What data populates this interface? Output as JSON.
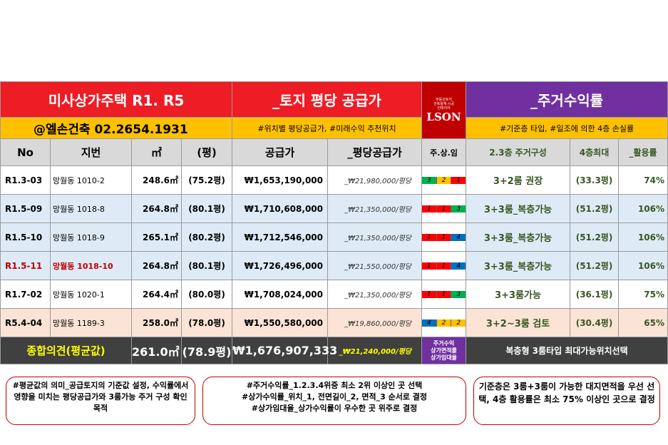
{
  "header": {
    "title_left": "미사상가주택 R1. R5",
    "title_mid": "_토지 평당 공급가",
    "title_right": "_주거수익률",
    "logo_lines": [
      "부동산토지",
      "건축설계·시공",
      "인테리어"
    ],
    "logo_text": "LSON",
    "company": "@엘손건축 02.2654.1931",
    "sub_mid": "#위치별 평당공급가, #미래수익 추천위치",
    "sub_right": "#기준층 타입, #일조에 의한 4층 손실률"
  },
  "columns": {
    "no": "No",
    "lot": "지번",
    "area": "㎡",
    "pyeong": "(평)",
    "price": "공급가",
    "unit_price": "_평당공급가",
    "score": "주.상.임",
    "plan": "2.3층 주거구성",
    "max": "4층최대",
    "rate": "_활용률"
  },
  "rows": [
    {
      "no": "R1.3-03",
      "lot": "망월동 1010-2",
      "area": "248.6㎡",
      "pyeong": "(75.2평)",
      "price": "₩1,653,190,000",
      "unit_price": "_₩21,980,000/평당",
      "scores": [
        "3",
        "2",
        "1"
      ],
      "score_colors": [
        "#00b050",
        "#ffc000",
        "#ff0000"
      ],
      "plan": "3+2룸 권장",
      "max": "(33.3평)",
      "rate": "74%",
      "bg": "white",
      "highlight": false
    },
    {
      "no": "R1.5-09",
      "lot": "망월동 1018-8",
      "area": "264.8㎡",
      "pyeong": "(80.1평)",
      "price": "₩1,710,608,000",
      "unit_price": "_₩21,350,000/평당",
      "scores": [
        "1",
        "1",
        "3"
      ],
      "score_colors": [
        "#ff0000",
        "#ff0000",
        "#00b050"
      ],
      "plan": "3+3룸_복층가능",
      "max": "(51.2평)",
      "rate": "106%",
      "bg": "blue",
      "highlight": false
    },
    {
      "no": "R1.5-10",
      "lot": "망월동 1018-9",
      "area": "265.1㎡",
      "pyeong": "(80.2평)",
      "price": "₩1,712,546,000",
      "unit_price": "_₩21,350,000/평당",
      "scores": [
        "1",
        "1",
        "4"
      ],
      "score_colors": [
        "#ff0000",
        "#ff0000",
        "#0070c0"
      ],
      "plan": "3+3룸_복층가능",
      "max": "(51.2평)",
      "rate": "106%",
      "bg": "blue",
      "highlight": false
    },
    {
      "no": "R1.5-11",
      "lot": "망월동 1018-10",
      "area": "264.8㎡",
      "pyeong": "(80.1평)",
      "price": "₩1,726,496,000",
      "unit_price": "_₩21,550,000/평당",
      "scores": [
        "1",
        "1",
        "4"
      ],
      "score_colors": [
        "#ff0000",
        "#ff0000",
        "#0070c0"
      ],
      "plan": "3+3룸_복층가능",
      "max": "(51.2평)",
      "rate": "106%",
      "bg": "blue",
      "highlight": true
    },
    {
      "no": "R1.7-02",
      "lot": "망월동 1020-1",
      "area": "264.4㎡",
      "pyeong": "(80.0평)",
      "price": "₩1,708,024,000",
      "unit_price": "_₩21,350,000/평당",
      "scores": [
        "1",
        "1",
        "3"
      ],
      "score_colors": [
        "#ff0000",
        "#ff0000",
        "#00b050"
      ],
      "plan": "3+3룸가능",
      "max": "(36.1평)",
      "rate": "75%",
      "bg": "white",
      "highlight": false
    },
    {
      "no": "R5.4-04",
      "lot": "망월동 1189-3",
      "area": "258.0㎡",
      "pyeong": "(78.0평)",
      "price": "₩1,550,580,000",
      "unit_price": "_₩19,860,000/평당",
      "scores": [
        "4",
        "2",
        "2"
      ],
      "score_colors": [
        "#0070c0",
        "#ffc000",
        "#ffc000"
      ],
      "plan": "3+2~3룸 검토",
      "max": "(30.4평)",
      "rate": "65%",
      "bg": "peach",
      "highlight": false
    }
  ],
  "summary": {
    "label": "종합의견(평균값)",
    "area": "261.0㎡",
    "pyeong": "(78.9평)",
    "price": "₩1,676,907,333",
    "unit_price": "_₩21,240,000/평당",
    "score_lines": [
      "주거수익",
      "상가면적률",
      "상가임대율"
    ],
    "plan": "복층형 3룸타입 최대가능위치선택"
  },
  "notes": [
    "#평균값의 의미_공급토지의 기준값 설정, 수익률에서 영향을 미치는 평당공급가와 3룸가능 주거 구성 확인 목적",
    "#주거수익률_1.2.3.4위중 최소 2위 이상인 곳 선택\n#상가수익률_위치_1, 전면길이_2, 면적_3 순서로 결정\n#상가임대율_상가수익률이 우수한 곳 위주로 결정",
    "기준층은 3룸+3룸이 가능한 대지면적을 우선 선택, 4층 활용률은 최소 75% 이상인 곳으로 결정"
  ],
  "colors": {
    "red": "#ee1c25",
    "purple": "#7030a0",
    "yellow": "#ffc000",
    "dark": "#404040",
    "green_text": "#375623"
  }
}
